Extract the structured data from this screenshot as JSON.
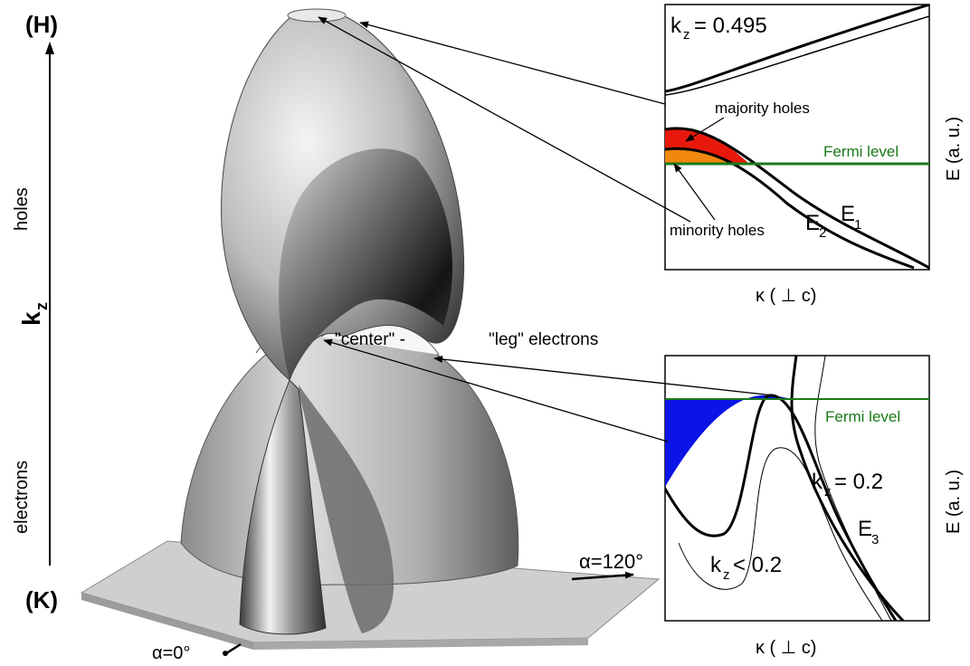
{
  "axis": {
    "top_label": "(H)",
    "bottom_label": "(K)",
    "kz_main": "k",
    "kz_sub": "z",
    "holes_label": "holes",
    "electrons_label": "electrons"
  },
  "surface": {
    "center_label": "\"center\" -",
    "leg_label": "\"leg\" electrons",
    "alpha0_label": "α=0°",
    "alpha120_label": "α=120°"
  },
  "top_panel": {
    "kz_main": "k",
    "kz_sub": "z",
    "kz_value": "= 0.495",
    "majority_label": "majority holes",
    "minority_label": "minority holes",
    "fermi_label": "Fermi level",
    "e1_main": "E",
    "e1_sub": "1",
    "e2_main": "E",
    "e2_sub": "2",
    "xlabel": "κ ( ⊥ c)",
    "ylabel": "E (a. u.)"
  },
  "bottom_panel": {
    "fermi_label": "Fermi level",
    "kz_main": "k",
    "kz_sub": "z",
    "kz_eq": "= 0.2",
    "kz_lt": "< 0.2",
    "e3_main": "E",
    "e3_sub": "3",
    "xlabel": "κ ( ⊥ c)",
    "ylabel": "E (a. u.)"
  },
  "colors": {
    "fermi": "#1a7a1a",
    "majority_fill": "#e8190c",
    "minority_fill": "#f0880f",
    "electron_fill": "#0a14e6"
  }
}
